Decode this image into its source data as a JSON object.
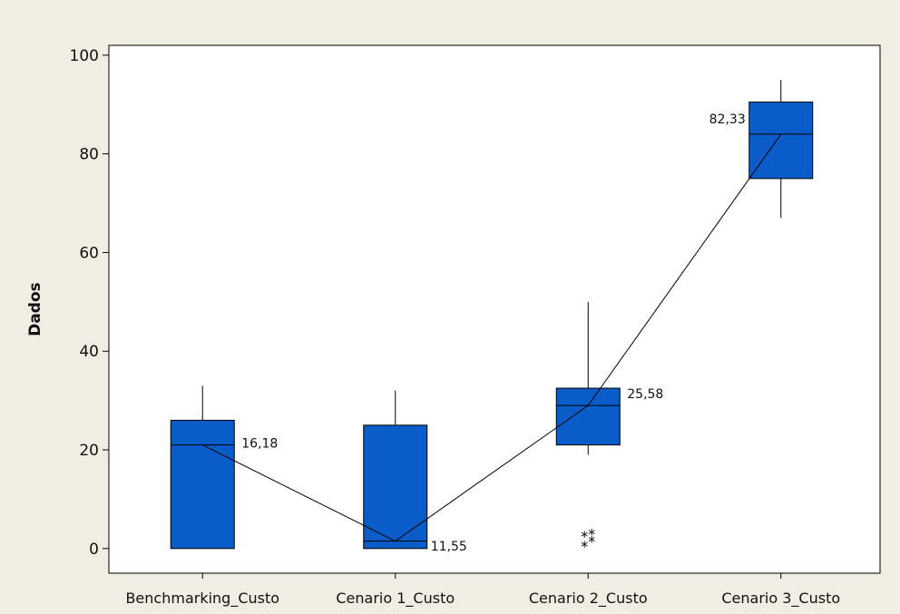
{
  "chart_data": {
    "type": "boxplot",
    "title": "",
    "xlabel": "",
    "ylabel": "Dados",
    "ylim": [
      -5,
      102
    ],
    "yticks": [
      0,
      20,
      40,
      60,
      80,
      100
    ],
    "grid": false,
    "legend": "none",
    "colors": {
      "plot_background": "#ffffff",
      "figure_background": "#f0ede2",
      "box_fill": "#0a5cc8"
    },
    "categories": [
      "Benchmarking_Custo",
      "Cenario 1_Custo",
      "Cenario 2_Custo",
      "Cenario 3_Custo"
    ],
    "boxes": [
      {
        "whisker_low": 0,
        "q1": 0,
        "median": 21,
        "q3": 26,
        "whisker_high": 33,
        "mean": 16.18,
        "mean_label": "16,18",
        "outliers": []
      },
      {
        "whisker_low": 0,
        "q1": 0,
        "median": 1.5,
        "q3": 25,
        "whisker_high": 32,
        "mean": 11.55,
        "mean_label": "11,55",
        "outliers": []
      },
      {
        "whisker_low": 19,
        "q1": 21,
        "median": 29,
        "q3": 32.5,
        "whisker_high": 50,
        "mean": 25.58,
        "mean_label": "25,58",
        "outliers": [
          0.5,
          1.5,
          2.5,
          3
        ]
      },
      {
        "whisker_low": 67,
        "q1": 75,
        "median": 84,
        "q3": 90.5,
        "whisker_high": 95,
        "mean": 82.33,
        "mean_label": "82,33",
        "outliers": []
      }
    ],
    "connect_line_values": [
      21,
      1.5,
      29,
      84
    ]
  }
}
